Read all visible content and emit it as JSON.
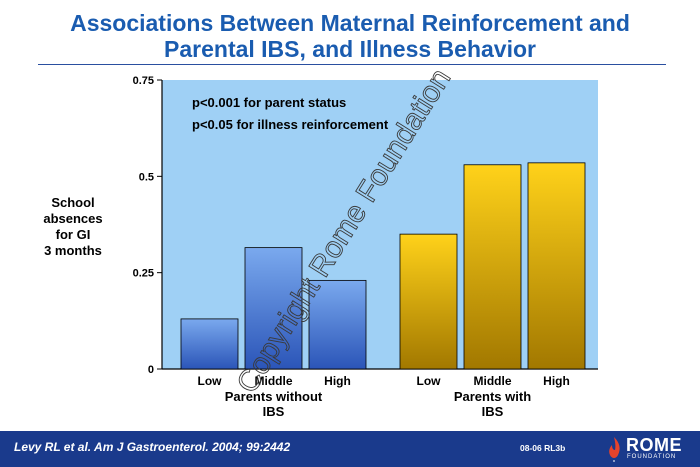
{
  "title": {
    "line1": "Associations Between Maternal Reinforcement and",
    "line2": "Parental IBS, and Illness Behavior"
  },
  "y_axis_label": {
    "line1": "School",
    "line2": "absences",
    "line3": "for GI",
    "line4": "3 months"
  },
  "annotations": [
    "p<0.001 for parent status",
    "p<0.05 for illness reinforcement"
  ],
  "watermark": "Copyright Rome Foundation",
  "footer": {
    "citation": "Levy RL et al. Am J Gastroenterol. 2004; 99:2442",
    "slide_code": "08-06  RL3b",
    "logo_word": "ROME",
    "logo_sub": "FOUNDATION"
  },
  "colors": {
    "plot_bg": "#9fd0f5",
    "group1_bar_top": "#7aa9ee",
    "group1_bar_bottom": "#2b55b8",
    "group2_bar_top": "#ffd21a",
    "group2_bar_bottom": "#a27800",
    "title": "#1a5cb0",
    "footer_bg": "#1a3a8c"
  },
  "chart_data": {
    "type": "bar",
    "ylim": [
      0,
      0.75
    ],
    "y_ticks": [
      "0",
      "0.25",
      "0.5",
      "0.75"
    ],
    "y_tick_values": [
      0,
      0.25,
      0.5,
      0.75
    ],
    "grid": false,
    "groups": [
      {
        "label_lines": [
          "Parents without",
          "IBS"
        ],
        "categories": [
          "Low",
          "Middle",
          "High"
        ],
        "values": [
          0.13,
          0.315,
          0.23
        ]
      },
      {
        "label_lines": [
          "Parents with",
          "IBS"
        ],
        "categories": [
          "Low",
          "Middle",
          "High"
        ],
        "values": [
          0.35,
          0.53,
          0.535
        ]
      }
    ]
  }
}
